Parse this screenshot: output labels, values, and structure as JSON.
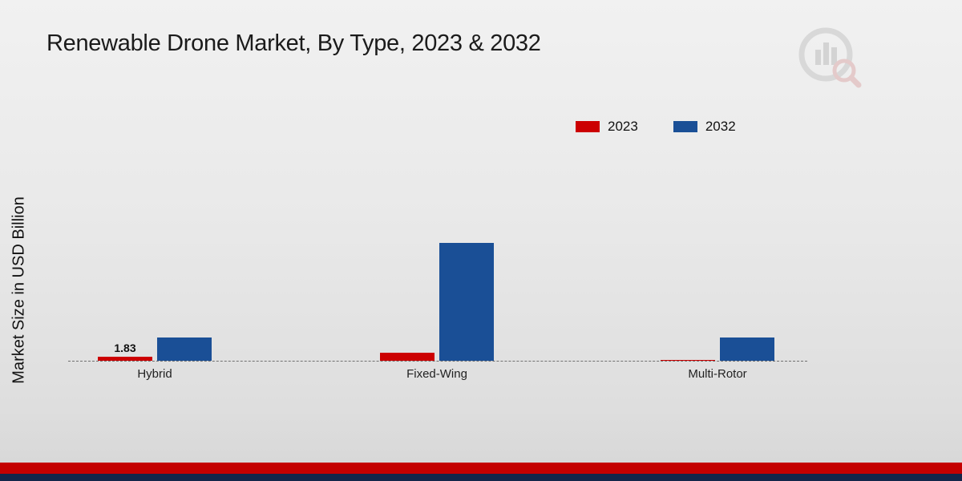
{
  "page": {
    "title": "Renewable Drone Market, By Type, 2023 & 2032",
    "ylabel": "Market Size in USD Billion"
  },
  "chart_data": {
    "type": "bar",
    "title": "Renewable Drone Market, By Type, 2023 & 2032",
    "xlabel": "",
    "ylabel": "Market Size in USD Billion",
    "categories": [
      "Hybrid",
      "Fixed-Wing",
      "Multi-Rotor"
    ],
    "series": [
      {
        "name": "2023",
        "color": "#cc0001",
        "values": [
          1.83,
          3.6,
          0.4
        ]
      },
      {
        "name": "2032",
        "color": "#1a4f96",
        "values": [
          10.6,
          54.0,
          10.8
        ]
      }
    ],
    "annotations": [
      {
        "category": "Hybrid",
        "series": "2023",
        "text": "1.83"
      }
    ],
    "grid": false,
    "baseline_style": "dashed",
    "legend_position": "top-right"
  },
  "colors": {
    "bar_2023": "#cc0001",
    "bar_2032": "#1a4f96",
    "footer_red": "#c40000",
    "footer_navy": "#13264a",
    "baseline": "#707070"
  },
  "icons": {
    "brand_logo": "bar-chart-magnifier-logo"
  }
}
